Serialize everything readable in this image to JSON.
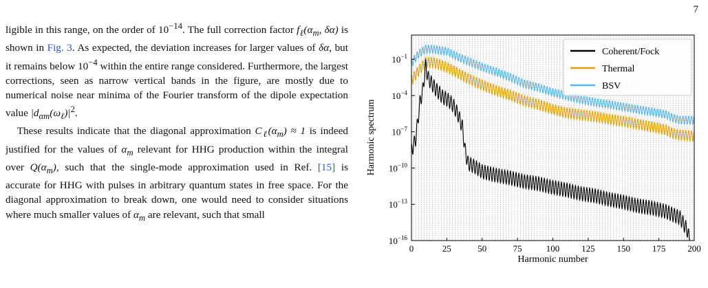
{
  "page_number": "7",
  "paragraph1": {
    "t1": "ligible in this range, on the order of 10",
    "t1_sup": "−14",
    "t2": ". The full correction factor ",
    "f_expr": "f",
    "f_sub": "ℓ",
    "f_args": "(α",
    "f_args_sub": "m",
    "f_args_end": ", δα)",
    "t3": " is shown in ",
    "fig_ref": "Fig. 3",
    "t4": ". As expected, the deviation increases for larger values of ",
    "t4_math": "δα",
    "t5": ", but it remains below 10",
    "t5_sup": "−4",
    "t6": " within the entire range considered. Furthermore, the largest corrections, seen as narrow vertical bands in the figure, are mostly due to numerical noise near minima of the Fourier transform of the dipole expectation value ",
    "t6_math": "|d",
    "t6_sub": "αm",
    "t6_math2": "(ω",
    "t6_sub2": "ℓ",
    "t6_math3": ")|",
    "t6_sup": "2",
    "t7": "."
  },
  "paragraph2": {
    "t1": "These results indicate that the diagonal approximation ",
    "c_math": "C",
    "c_sub": "ℓ",
    "c_args": "(α",
    "c_args_sub": "m",
    "c_args_end": ") ≈ 1",
    "t2": " is indeed justified for the values of ",
    "alpha": "α",
    "alpha_sub": "m",
    "t3": " relevant for HHG production within the integral over ",
    "q_math": "Q(α",
    "q_sub": "m",
    "q_end": ")",
    "t4": ", such that the single-mode approximation used in Ref. ",
    "ref_15": "[15]",
    "t5": " is accurate for HHG with pulses in arbitrary quantum states in free space. For the diagonal approximation to break down, one would need to consider situations where much smaller values of ",
    "alpha2": "α",
    "alpha2_sub": "m",
    "t6": " are relevant, such that small"
  },
  "chart_data": {
    "type": "line",
    "xlabel": "Harmonic number",
    "ylabel": "Harmonic spectrum",
    "x_ticks": [
      "0",
      "25",
      "50",
      "75",
      "100",
      "125",
      "150",
      "175",
      "200"
    ],
    "xlim": [
      0,
      200
    ],
    "y_scale": "log",
    "ylim": [
      1e-16,
      10
    ],
    "y_tick_values": [
      1e-16,
      1e-13,
      1e-10,
      1e-07,
      0.0001,
      0.1
    ],
    "y_tick_base": "10",
    "y_tick_exponents": [
      "−16",
      "−13",
      "−10",
      "−7",
      "−4",
      "−1"
    ],
    "vertical_grid": "odd harmonics",
    "legend_position": "top-right",
    "series": [
      {
        "name": "Coherent/Fock",
        "color": "#000000",
        "x": [
          0,
          3,
          6,
          8,
          10,
          12,
          15,
          18,
          20,
          22,
          25,
          28,
          30,
          33,
          36,
          38,
          40,
          45,
          50,
          60,
          70,
          80,
          90,
          100,
          110,
          120,
          130,
          140,
          150,
          160,
          170,
          180,
          190,
          195,
          198
        ],
        "y": [
          1e-08,
          1e-07,
          0.0001,
          0.001,
          0.1,
          0.01,
          0.003,
          0.001,
          0.0006,
          0.0003,
          0.0002,
          0.0001,
          5e-05,
          1e-05,
          1e-06,
          1e-08,
          1e-09,
          5e-10,
          2e-10,
          1e-10,
          6e-11,
          3e-11,
          2e-11,
          1e-11,
          6e-12,
          3e-12,
          2e-12,
          1e-12,
          6e-13,
          3e-13,
          2e-13,
          1e-13,
          3e-14,
          3e-15,
          1e-16
        ]
      },
      {
        "name": "Thermal",
        "color": "#e69f00",
        "x": [
          0,
          5,
          10,
          15,
          20,
          25,
          30,
          40,
          50,
          60,
          70,
          80,
          90,
          100,
          110,
          120,
          130,
          140,
          150,
          160,
          170,
          180,
          185,
          190,
          200
        ],
        "y": [
          0.005,
          0.03,
          0.15,
          0.15,
          0.1,
          0.06,
          0.03,
          0.007,
          0.002,
          0.0007,
          0.0003,
          0.0001,
          5e-05,
          2e-05,
          1e-05,
          7e-06,
          5e-06,
          3e-06,
          2e-06,
          1.2e-06,
          7e-07,
          4e-07,
          2e-07,
          1.5e-07,
          1.2e-07
        ]
      },
      {
        "name": "BSV",
        "color": "#56b4e9",
        "x": [
          0,
          5,
          10,
          15,
          20,
          25,
          30,
          40,
          50,
          60,
          70,
          80,
          90,
          100,
          110,
          120,
          130,
          140,
          150,
          160,
          170,
          180,
          185,
          190,
          200
        ],
        "y": [
          0.1,
          0.6,
          1.5,
          1.5,
          1.2,
          1.0,
          0.5,
          0.15,
          0.05,
          0.02,
          0.007,
          0.002,
          0.001,
          0.0004,
          0.0002,
          0.0001,
          6e-05,
          4e-05,
          2.5e-05,
          1.5e-05,
          1e-05,
          6e-06,
          3e-06,
          2e-06,
          2e-06
        ]
      }
    ]
  }
}
